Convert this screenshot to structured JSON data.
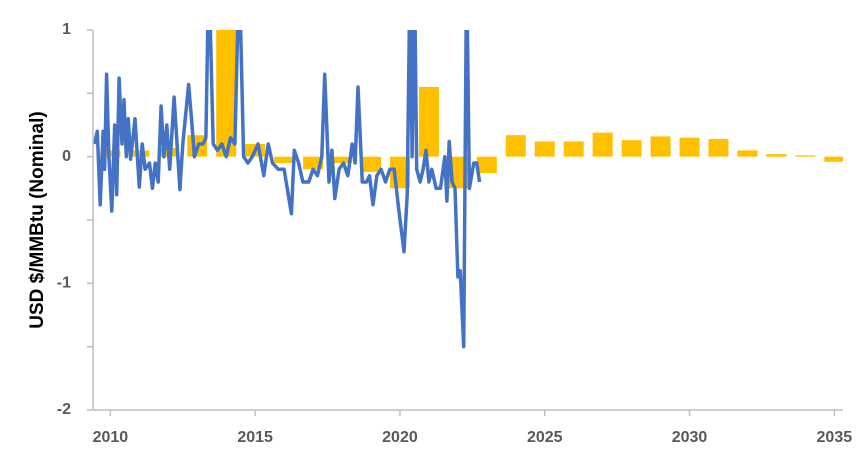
{
  "chart_data": {
    "type": "combo",
    "ylabel": "USD $/MMBtu (Nominal)",
    "xlim": [
      2009.4,
      2035.3
    ],
    "xticks": [
      2010,
      2015,
      2020,
      2025,
      2030,
      2035
    ],
    "ylim": [
      -2,
      1
    ],
    "yticks": [
      1,
      0,
      -1,
      -2
    ],
    "yminor_ticks": [
      0.5,
      -0.5,
      -1.5
    ],
    "series": [
      {
        "type": "bar",
        "color": "#ffc000",
        "x": [
          2010,
          2011,
          2012,
          2013,
          2014,
          2015,
          2016,
          2017,
          2018,
          2019,
          2020,
          2021,
          2022,
          2023,
          2024,
          2025,
          2026,
          2027,
          2028,
          2029,
          2030,
          2031,
          2032,
          2033,
          2034,
          2035
        ],
        "values": [
          0.05,
          0.05,
          0.07,
          0.17,
          1.3,
          0.1,
          -0.05,
          -0.1,
          -0.05,
          -0.12,
          -0.25,
          0.55,
          -0.25,
          -0.13,
          0.17,
          0.12,
          0.12,
          0.19,
          0.13,
          0.16,
          0.15,
          0.14,
          0.05,
          0.02,
          0.01,
          -0.04
        ]
      },
      {
        "type": "line",
        "color": "#4472c4",
        "x": [
          2009.45,
          2009.55,
          2009.65,
          2009.75,
          2009.8,
          2009.87,
          2009.95,
          2010.05,
          2010.15,
          2010.22,
          2010.3,
          2010.4,
          2010.47,
          2010.55,
          2010.62,
          2010.7,
          2010.85,
          2011.0,
          2011.1,
          2011.2,
          2011.35,
          2011.45,
          2011.55,
          2011.65,
          2011.75,
          2011.85,
          2011.95,
          2012.05,
          2012.2,
          2012.4,
          2012.5,
          2012.7,
          2012.8,
          2012.9,
          2013.05,
          2013.2,
          2013.3,
          2013.4,
          2013.55,
          2013.7,
          2013.85,
          2014.0,
          2014.15,
          2014.3,
          2014.45,
          2014.6,
          2014.75,
          2014.9,
          2015.1,
          2015.3,
          2015.45,
          2015.6,
          2015.8,
          2016.0,
          2016.25,
          2016.35,
          2016.5,
          2016.65,
          2016.85,
          2017.0,
          2017.15,
          2017.3,
          2017.4,
          2017.55,
          2017.65,
          2017.75,
          2017.9,
          2018.05,
          2018.2,
          2018.35,
          2018.45,
          2018.55,
          2018.7,
          2018.85,
          2018.95,
          2019.07,
          2019.2,
          2019.35,
          2019.5,
          2019.65,
          2019.8,
          2019.95,
          2020.14,
          2020.25,
          2020.35,
          2020.42,
          2020.5,
          2020.58,
          2020.7,
          2020.8,
          2020.9,
          2021.0,
          2021.1,
          2021.25,
          2021.4,
          2021.55,
          2021.62,
          2021.7,
          2021.8,
          2021.9,
          2022.0,
          2022.08,
          2022.2,
          2022.3,
          2022.4,
          2022.55,
          2022.65,
          2022.75
        ],
        "values": [
          0.1,
          0.2,
          -0.38,
          0.2,
          -0.1,
          0.65,
          0.0,
          -0.43,
          0.25,
          -0.3,
          0.62,
          0.1,
          0.45,
          0.0,
          0.3,
          -0.02,
          0.3,
          -0.24,
          0.1,
          -0.1,
          -0.05,
          -0.25,
          -0.05,
          -0.2,
          0.4,
          0.0,
          0.25,
          -0.1,
          0.47,
          -0.26,
          0.1,
          0.57,
          0.3,
          0.0,
          0.1,
          0.1,
          0.15,
          1.5,
          0.1,
          0.05,
          0.1,
          0.0,
          0.15,
          0.1,
          1.5,
          0.0,
          -0.05,
          0.0,
          0.1,
          -0.15,
          0.1,
          -0.05,
          -0.1,
          -0.1,
          -0.45,
          0.05,
          -0.05,
          -0.2,
          -0.2,
          -0.1,
          -0.15,
          0.0,
          0.65,
          -0.2,
          0.05,
          -0.33,
          -0.1,
          -0.05,
          -0.15,
          0.1,
          -0.05,
          0.55,
          -0.2,
          -0.2,
          -0.15,
          -0.38,
          -0.15,
          -0.1,
          -0.2,
          -0.1,
          -0.1,
          -0.4,
          -0.75,
          -0.3,
          1.5,
          0.0,
          1.5,
          -0.1,
          -0.2,
          -0.1,
          0.05,
          -0.2,
          -0.1,
          -0.25,
          -0.25,
          0.0,
          -0.35,
          0.12,
          -0.2,
          -0.25,
          -0.95,
          -0.9,
          -1.5,
          1.5,
          -0.25,
          -0.05,
          -0.05,
          -0.2
        ]
      }
    ]
  }
}
